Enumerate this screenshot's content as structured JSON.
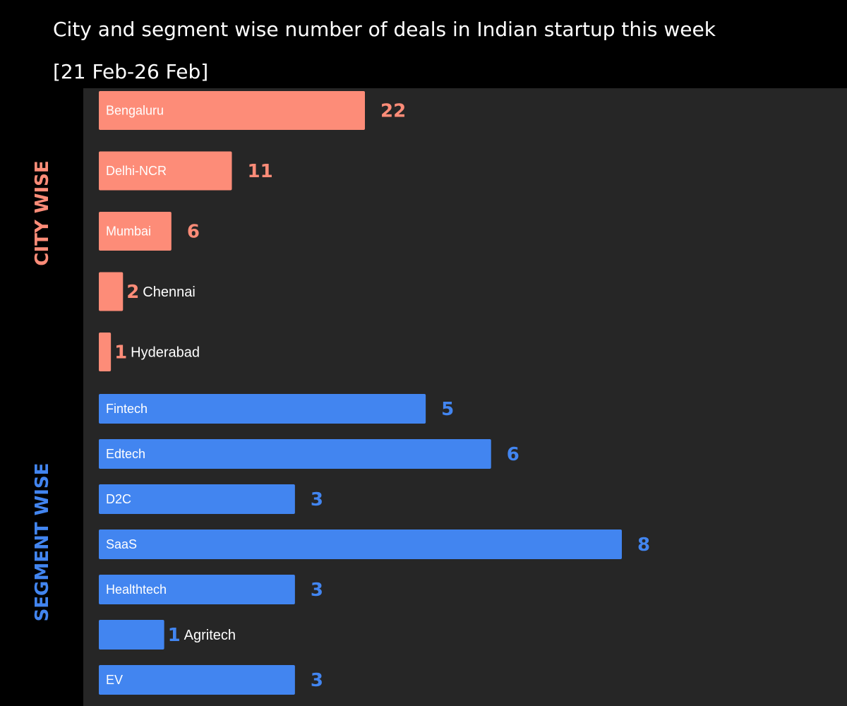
{
  "title_line1": "City and segment wise number of deals in Indian startup this week",
  "title_line2": "[21 Feb-26 Feb]",
  "colors": {
    "background": "#000000",
    "plot": "#262626",
    "city": "#fd8c78",
    "segment": "#4285f0",
    "text": "#ffffff"
  },
  "chart_data": [
    {
      "type": "bar",
      "orientation": "horizontal",
      "group_label": "CITY WISE",
      "categories": [
        "Bengaluru",
        "Delhi-NCR",
        "Mumbai",
        "Chennai",
        "Hyderabad"
      ],
      "values": [
        22,
        11,
        6,
        2,
        1
      ],
      "xlim": [
        0,
        22
      ]
    },
    {
      "type": "bar",
      "orientation": "horizontal",
      "group_label": "SEGMENT WISE",
      "categories": [
        "Fintech",
        "Edtech",
        "D2C",
        "SaaS",
        "Healthtech",
        "Agritech",
        "EV"
      ],
      "values": [
        5,
        6,
        3,
        8,
        3,
        1,
        3
      ],
      "xlim": [
        0,
        8
      ]
    }
  ]
}
